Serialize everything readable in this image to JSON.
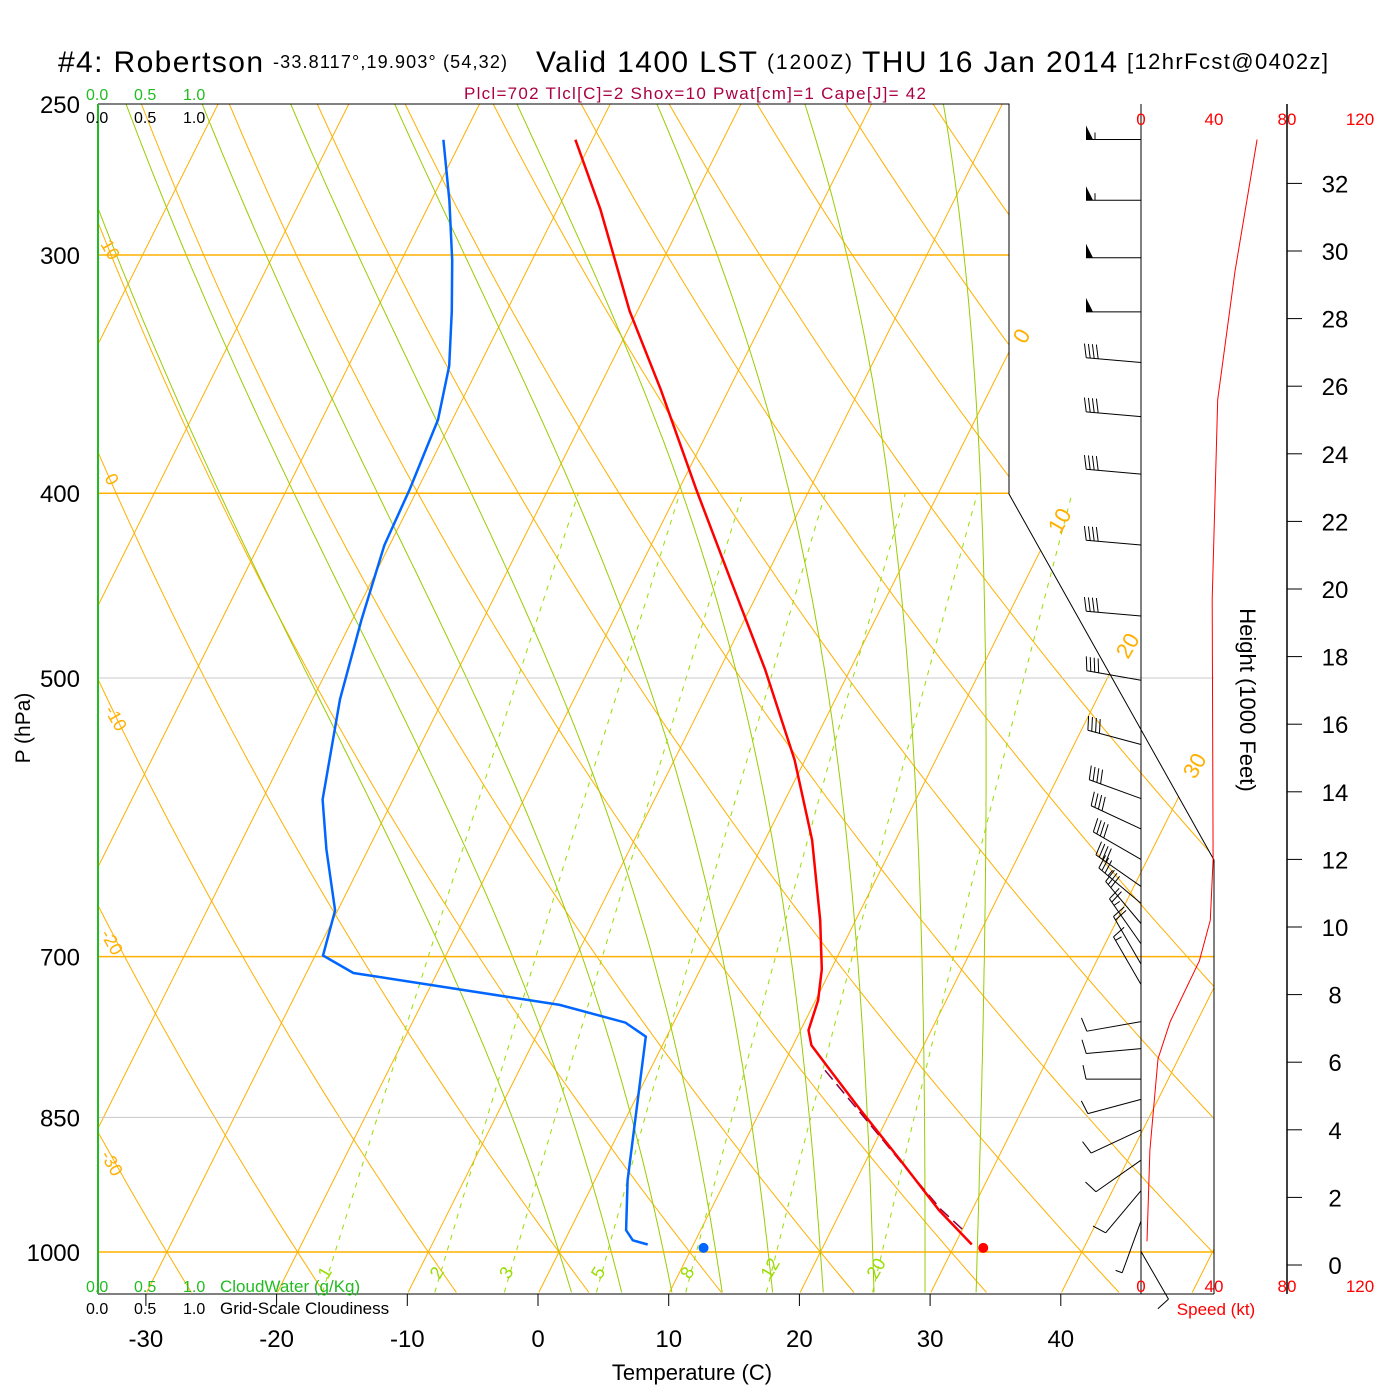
{
  "title": {
    "station": "#4: Robertson",
    "coords": "-33.8117°,19.903° (54,32)",
    "valid": "Valid 1400 LST",
    "utc": "(1200Z)",
    "date": "THU 16 Jan 2014",
    "forecast": "[12hrFcst@0402z]"
  },
  "indices": "Plcl=702 Tlcl[C]=2 Shox=10 Pwat[cm]=1 Cape[J]= 42",
  "colors": {
    "temperature": "#ff0000",
    "dewpoint": "#0066ff",
    "parcel": "#880044",
    "dry": "#ffb000",
    "moist": "#99cc00",
    "mixing": "#99dd00",
    "speed": "#ff0000",
    "cloud": "#22bb22"
  },
  "chart_data": {
    "type": "line",
    "subtype": "skew-t log-p",
    "x_axis": {
      "label": "Temperature (C)",
      "ticks": [
        -30,
        -20,
        -10,
        0,
        10,
        20,
        30,
        40
      ]
    },
    "y_axis": {
      "label": "P (hPa)",
      "ticks": [
        250,
        300,
        400,
        500,
        700,
        850,
        1000
      ],
      "range": [
        1050,
        250
      ]
    },
    "height_axis": {
      "label": "Height (1000 Feet)",
      "ticks": [
        0,
        2,
        4,
        6,
        8,
        10,
        12,
        14,
        16,
        18,
        20,
        22,
        24,
        26,
        28,
        30,
        32
      ]
    },
    "speed_axis": {
      "label": "Speed (kt)",
      "ticks": [
        0,
        40,
        80,
        120
      ]
    },
    "cloud_water_axis": {
      "label": "CloudWater (g/Kg)",
      "ticks": [
        "0.0",
        "0.5",
        "1.0"
      ]
    },
    "cloudiness_axis": {
      "label": "Grid-Scale Cloudiness",
      "ticks": [
        "0.0",
        "0.5",
        "1.0"
      ]
    },
    "isotherm_labels": [
      0,
      10,
      20,
      30
    ],
    "dry_adiabat_labels": [
      10,
      0,
      -10,
      -20,
      -30
    ],
    "mixing_ratio_labels": [
      1,
      2,
      3,
      5,
      8,
      12,
      20
    ],
    "moist_adiabat_start_temps": [
      0,
      4,
      8,
      12,
      16,
      20,
      24,
      28,
      32
    ],
    "temperature": {
      "name": "Temperature",
      "p": [
        261,
        284,
        321,
        353,
        398,
        444,
        495,
        552,
        608,
        670,
        711,
        738,
        765,
        779,
        803,
        842,
        895,
        951,
        991
      ],
      "t": [
        -41.3,
        -36.7,
        -30.6,
        -25.2,
        -18.7,
        -12.6,
        -6.5,
        -0.8,
        3.6,
        7.3,
        9.3,
        10.2,
        10.6,
        11.4,
        13.8,
        17.6,
        22.6,
        27.5,
        31.3
      ]
    },
    "dewpoint": {
      "name": "Dewpoint",
      "p": [
        261,
        281,
        302,
        321,
        343,
        366,
        398,
        426,
        466,
        513,
        579,
        615,
        662,
        699,
        714,
        742,
        758,
        771,
        832,
        917,
        974,
        986,
        991
      ],
      "t": [
        -51.4,
        -48.6,
        -46.1,
        -44.2,
        -42.3,
        -41.1,
        -40.6,
        -40.4,
        -39.3,
        -37.9,
        -35.4,
        -33.2,
        -30.2,
        -29.4,
        -26.4,
        -9.4,
        -3.7,
        -1.6,
        0.2,
        2.5,
        4.3,
        5.2,
        6.5
      ]
    },
    "parcel": {
      "name": "Parcel",
      "p": [
        803,
        850,
        900,
        950,
        976
      ],
      "t": [
        13.4,
        18.2,
        23.0,
        27.6,
        30.3
      ]
    },
    "surface": {
      "temperature": 32.3,
      "dewpoint": 10.9,
      "p": 995
    },
    "wind_speed_profile": {
      "height_kft": [
        0.7,
        3.4,
        6.1,
        7.2,
        9.0,
        10.2,
        12.0,
        19.7,
        25.6,
        29.4,
        33.3
      ],
      "speed_kt": [
        3.3,
        4.9,
        9.3,
        16,
        32,
        38,
        39.5,
        39,
        42,
        51.5,
        63.6
      ]
    },
    "wind_barbs": [
      {
        "h": 33.3,
        "dir": 270,
        "spd": 55
      },
      {
        "h": 31.5,
        "dir": 270,
        "spd": 55
      },
      {
        "h": 29.8,
        "dir": 270,
        "spd": 50
      },
      {
        "h": 28.2,
        "dir": 270,
        "spd": 50
      },
      {
        "h": 26.7,
        "dir": 275,
        "spd": 40
      },
      {
        "h": 25.1,
        "dir": 275,
        "spd": 40
      },
      {
        "h": 23.4,
        "dir": 275,
        "spd": 40
      },
      {
        "h": 21.3,
        "dir": 275,
        "spd": 40
      },
      {
        "h": 19.2,
        "dir": 275,
        "spd": 40
      },
      {
        "h": 17.3,
        "dir": 280,
        "spd": 40
      },
      {
        "h": 15.4,
        "dir": 285,
        "spd": 40
      },
      {
        "h": 13.8,
        "dir": 290,
        "spd": 40
      },
      {
        "h": 12.9,
        "dir": 295,
        "spd": 40
      },
      {
        "h": 12.0,
        "dir": 300,
        "spd": 40
      },
      {
        "h": 11.2,
        "dir": 305,
        "spd": 40
      },
      {
        "h": 10.7,
        "dir": 310,
        "spd": 35
      },
      {
        "h": 10.1,
        "dir": 320,
        "spd": 30
      },
      {
        "h": 9.5,
        "dir": 325,
        "spd": 25
      },
      {
        "h": 8.9,
        "dir": 330,
        "spd": 20
      },
      {
        "h": 8.3,
        "dir": 330,
        "spd": 15
      },
      {
        "h": 7.2,
        "dir": 260,
        "spd": 10
      },
      {
        "h": 6.4,
        "dir": 265,
        "spd": 10
      },
      {
        "h": 5.5,
        "dir": 270,
        "spd": 10
      },
      {
        "h": 4.9,
        "dir": 255,
        "spd": 10
      },
      {
        "h": 4.0,
        "dir": 245,
        "spd": 10
      },
      {
        "h": 3.1,
        "dir": 235,
        "spd": 10
      },
      {
        "h": 2.2,
        "dir": 220,
        "spd": 10
      },
      {
        "h": 1.3,
        "dir": 200,
        "spd": 5
      },
      {
        "h": 0.4,
        "dir": 150,
        "spd": 10
      }
    ]
  }
}
